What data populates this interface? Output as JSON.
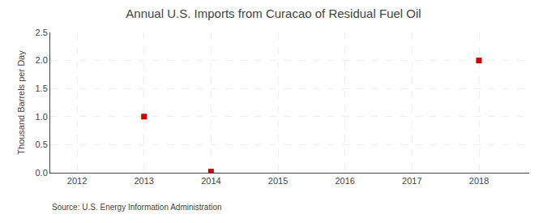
{
  "chart_data": {
    "type": "scatter",
    "title": "Annual U.S. Imports from Curacao of Residual Fuel Oil",
    "y_label": "Thousand Barrels per Day",
    "annotations": [
      "Source: U.S. Energy Information Administration"
    ],
    "x": [
      2013,
      2014,
      2018
    ],
    "values": [
      1.0,
      0.02,
      2.0
    ],
    "color": "#cc0000",
    "marker": "square",
    "xlim": [
      2011.6,
      2018.75
    ],
    "xticks": [
      2012,
      2013,
      2014,
      2015,
      2016,
      2017,
      2018
    ],
    "ylim": [
      0.0,
      2.5
    ],
    "yticks": [
      {
        "value": 0.0,
        "label": "0.0"
      },
      0.5,
      {
        "value": 1.0,
        "label": "1.0"
      },
      1.5,
      {
        "value": 2.0,
        "label": "2.0"
      },
      2.5
    ],
    "grid": true
  }
}
